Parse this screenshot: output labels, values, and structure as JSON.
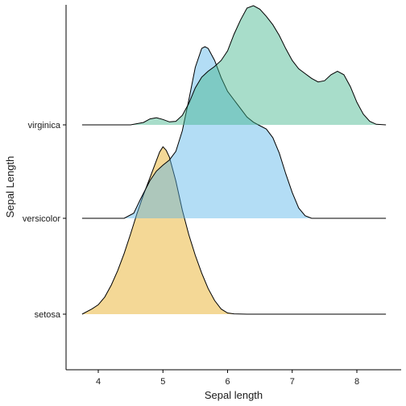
{
  "chart_data": {
    "type": "ridgeline-density",
    "title": "",
    "xlabel": "Sepal length",
    "ylabel": "Sepal Length",
    "xlim": [
      3.5,
      8.65
    ],
    "x_ticks": [
      4,
      5,
      6,
      7,
      8
    ],
    "x_tick_labels": [
      "4",
      "5",
      "6",
      "7",
      "8"
    ],
    "grid": false,
    "legend": "none",
    "series": [
      {
        "name": "setosa",
        "color": "#E6A817",
        "points": [
          [
            3.75,
            0.0
          ],
          [
            3.9,
            0.03
          ],
          [
            4.0,
            0.055
          ],
          [
            4.1,
            0.1
          ],
          [
            4.2,
            0.17
          ],
          [
            4.3,
            0.255
          ],
          [
            4.4,
            0.355
          ],
          [
            4.5,
            0.47
          ],
          [
            4.6,
            0.59
          ],
          [
            4.7,
            0.7
          ],
          [
            4.8,
            0.8
          ],
          [
            4.9,
            0.9
          ],
          [
            4.95,
            0.95
          ],
          [
            5.0,
            0.98
          ],
          [
            5.05,
            0.96
          ],
          [
            5.1,
            0.92
          ],
          [
            5.2,
            0.78
          ],
          [
            5.3,
            0.61
          ],
          [
            5.4,
            0.465
          ],
          [
            5.5,
            0.345
          ],
          [
            5.6,
            0.24
          ],
          [
            5.7,
            0.15
          ],
          [
            5.8,
            0.08
          ],
          [
            5.9,
            0.03
          ],
          [
            6.0,
            0.007
          ],
          [
            6.1,
            0.002
          ],
          [
            6.3,
            0.0
          ],
          [
            8.45,
            0.0
          ]
        ]
      },
      {
        "name": "versicolor",
        "color": "#56B4E9",
        "points": [
          [
            3.75,
            0.0
          ],
          [
            4.4,
            0.0
          ],
          [
            4.55,
            0.03
          ],
          [
            4.65,
            0.11
          ],
          [
            4.8,
            0.22
          ],
          [
            4.9,
            0.275
          ],
          [
            5.0,
            0.31
          ],
          [
            5.1,
            0.34
          ],
          [
            5.2,
            0.39
          ],
          [
            5.3,
            0.51
          ],
          [
            5.4,
            0.69
          ],
          [
            5.5,
            0.88
          ],
          [
            5.6,
            0.99
          ],
          [
            5.65,
            1.0
          ],
          [
            5.7,
            0.99
          ],
          [
            5.8,
            0.92
          ],
          [
            5.9,
            0.82
          ],
          [
            6.0,
            0.74
          ],
          [
            6.1,
            0.69
          ],
          [
            6.2,
            0.64
          ],
          [
            6.3,
            0.59
          ],
          [
            6.4,
            0.56
          ],
          [
            6.5,
            0.54
          ],
          [
            6.6,
            0.52
          ],
          [
            6.7,
            0.47
          ],
          [
            6.8,
            0.38
          ],
          [
            6.9,
            0.26
          ],
          [
            7.0,
            0.15
          ],
          [
            7.1,
            0.06
          ],
          [
            7.2,
            0.015
          ],
          [
            7.3,
            0.0
          ],
          [
            8.45,
            0.0
          ]
        ]
      },
      {
        "name": "virginica",
        "color": "#3EB489",
        "points": [
          [
            3.75,
            0.0
          ],
          [
            4.5,
            0.0
          ],
          [
            4.7,
            0.02
          ],
          [
            4.8,
            0.05
          ],
          [
            4.9,
            0.06
          ],
          [
            5.0,
            0.045
          ],
          [
            5.1,
            0.025
          ],
          [
            5.2,
            0.03
          ],
          [
            5.3,
            0.08
          ],
          [
            5.4,
            0.18
          ],
          [
            5.5,
            0.31
          ],
          [
            5.6,
            0.4
          ],
          [
            5.7,
            0.45
          ],
          [
            5.8,
            0.49
          ],
          [
            5.9,
            0.54
          ],
          [
            6.0,
            0.62
          ],
          [
            6.1,
            0.76
          ],
          [
            6.2,
            0.88
          ],
          [
            6.3,
            0.98
          ],
          [
            6.4,
            1.0
          ],
          [
            6.5,
            0.97
          ],
          [
            6.6,
            0.91
          ],
          [
            6.7,
            0.84
          ],
          [
            6.8,
            0.75
          ],
          [
            6.9,
            0.64
          ],
          [
            7.0,
            0.54
          ],
          [
            7.1,
            0.47
          ],
          [
            7.2,
            0.43
          ],
          [
            7.3,
            0.39
          ],
          [
            7.4,
            0.36
          ],
          [
            7.5,
            0.37
          ],
          [
            7.6,
            0.42
          ],
          [
            7.7,
            0.45
          ],
          [
            7.8,
            0.42
          ],
          [
            7.9,
            0.32
          ],
          [
            8.0,
            0.19
          ],
          [
            8.1,
            0.09
          ],
          [
            8.2,
            0.03
          ],
          [
            8.3,
            0.005
          ],
          [
            8.45,
            0.0
          ]
        ]
      }
    ]
  }
}
